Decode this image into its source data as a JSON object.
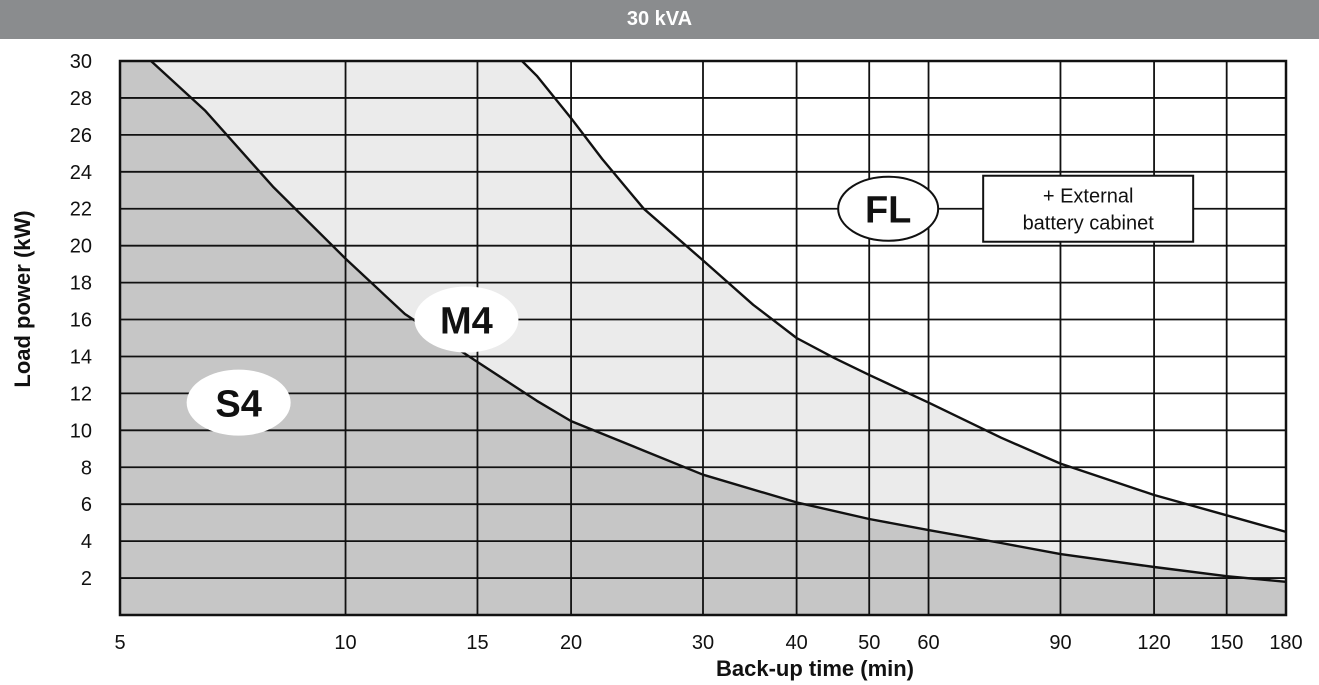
{
  "chart_data": {
    "type": "area",
    "title": "30 kVA",
    "xlabel": "Back-up time (min)",
    "ylabel": "Load power (kW)",
    "x_scale": "log",
    "xlim": [
      5,
      180
    ],
    "ylim": [
      0,
      30
    ],
    "x_ticks": [
      5,
      10,
      15,
      20,
      30,
      40,
      50,
      60,
      90,
      120,
      150,
      180
    ],
    "x_tick_labels": [
      "5",
      "10",
      "15",
      "20",
      "30",
      "40",
      "50",
      "60",
      "90",
      "120",
      "150",
      "180"
    ],
    "x_gridlines": [
      5,
      10,
      15,
      20,
      30,
      40,
      50,
      60,
      90,
      120,
      150,
      180
    ],
    "y_ticks": [
      2,
      4,
      6,
      8,
      10,
      12,
      14,
      16,
      18,
      20,
      22,
      24,
      26,
      28,
      30
    ],
    "y_tick_labels": [
      "2",
      "4",
      "6",
      "8",
      "10",
      "12",
      "14",
      "16",
      "18",
      "20",
      "22",
      "24",
      "26",
      "28",
      "30"
    ],
    "grid": true,
    "series": [
      {
        "name": "S4",
        "color": "#c6c6c6",
        "x": [
          5.5,
          6.5,
          8,
          10,
          12,
          15,
          18,
          20,
          25,
          30,
          40,
          50,
          60,
          75,
          90,
          120,
          150,
          180
        ],
        "y": [
          30,
          27.3,
          23.2,
          19.3,
          16.3,
          13.7,
          11.6,
          10.5,
          8.9,
          7.6,
          6.1,
          5.2,
          4.6,
          3.9,
          3.3,
          2.6,
          2.1,
          1.8
        ]
      },
      {
        "name": "M4",
        "color": "#ebebeb",
        "x": [
          17.2,
          18,
          20,
          22,
          25,
          30,
          35,
          40,
          45,
          50,
          60,
          75,
          90,
          120,
          150,
          180
        ],
        "y": [
          30,
          29.2,
          26.9,
          24.7,
          22,
          19.2,
          16.8,
          15,
          13.9,
          13,
          11.5,
          9.6,
          8.2,
          6.5,
          5.4,
          4.5
        ]
      }
    ],
    "annotations": [
      {
        "text": "S4",
        "shape": "ellipse",
        "x": 7.2,
        "y": 11.5
      },
      {
        "text": "M4",
        "shape": "ellipse",
        "x": 14.5,
        "y": 16
      },
      {
        "text": "FL",
        "shape": "ellipse-outline",
        "x": 53,
        "y": 22
      },
      {
        "text_lines": [
          "+ External",
          "battery cabinet"
        ],
        "shape": "box",
        "x": 98,
        "y": 22
      }
    ]
  }
}
